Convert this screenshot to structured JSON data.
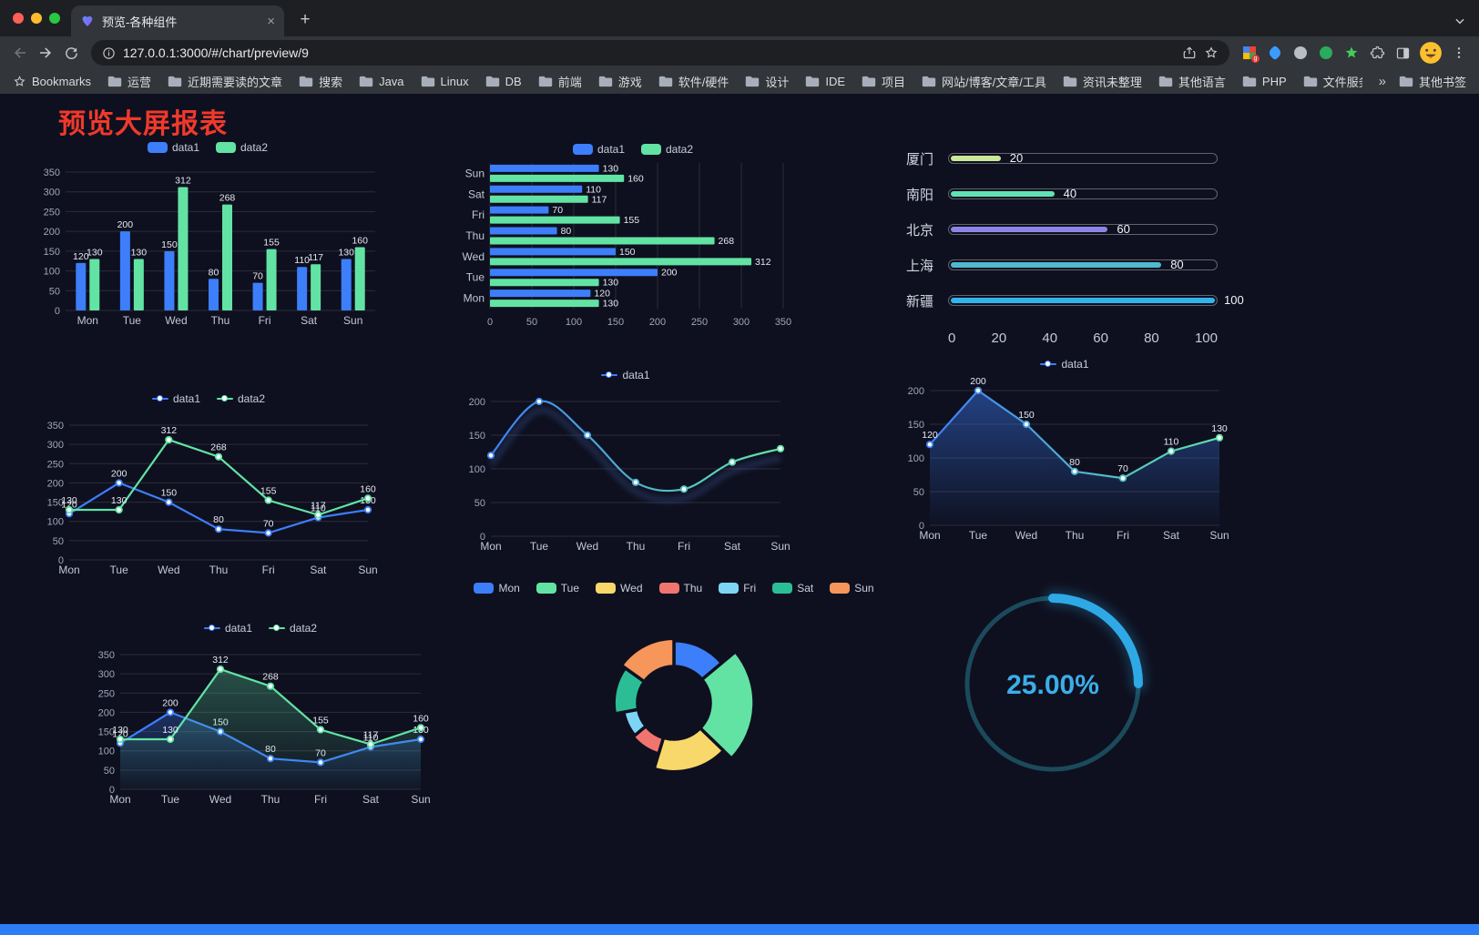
{
  "browser": {
    "tab": {
      "title": "预览-各种组件",
      "close_icon": "×"
    },
    "new_tab_icon": "+",
    "url": "127.0.0.1:3000/#/chart/preview/9",
    "bookmarks_bar": {
      "label": "Bookmarks",
      "folders": [
        "运营",
        "近期需要读的文章",
        "搜索",
        "Java",
        "Linux",
        "DB",
        "前端",
        "游戏",
        "软件/硬件",
        "设计",
        "IDE",
        "项目",
        "网站/博客/文章/工具",
        "资讯未整理",
        "其他语言",
        "PHP",
        "文件服务器"
      ],
      "overflow_chevron": "»",
      "other_bookmarks": "其他书签"
    }
  },
  "page": {
    "title": "预览大屏报表"
  },
  "colors": {
    "data1_blue": "#3D7EFA",
    "data2_green": "#62E3A4",
    "title_red": "#F0392B",
    "gauge_cyan": "#2EA9E6",
    "background": "#0E101F"
  },
  "chart_data": [
    {
      "type": "bar",
      "legend": [
        "data1",
        "data2"
      ],
      "legend_marker": "pill",
      "categories": [
        "Mon",
        "Tue",
        "Wed",
        "Thu",
        "Fri",
        "Sat",
        "Sun"
      ],
      "series": [
        {
          "name": "data1",
          "color": "#3D7EFA",
          "values": [
            120,
            200,
            150,
            80,
            70,
            110,
            130
          ]
        },
        {
          "name": "data2",
          "color": "#62E3A4",
          "values": [
            130,
            130,
            312,
            268,
            155,
            117,
            160
          ]
        }
      ],
      "ymax": 350,
      "ystep": 50
    },
    {
      "type": "hbar",
      "legend": [
        "data1",
        "data2"
      ],
      "legend_marker": "pill",
      "categories": [
        "Sun",
        "Sat",
        "Fri",
        "Thu",
        "Wed",
        "Tue",
        "Mon"
      ],
      "series": [
        {
          "name": "data1",
          "color": "#3D7EFA",
          "values": [
            130,
            110,
            70,
            80,
            150,
            200,
            120
          ]
        },
        {
          "name": "data2",
          "color": "#62E3A4",
          "values": [
            160,
            117,
            155,
            268,
            312,
            130,
            130
          ]
        }
      ],
      "xmax": 350,
      "xstep": 50
    },
    {
      "type": "progress",
      "max": 100,
      "xticks": [
        0,
        20,
        40,
        60,
        80,
        100
      ],
      "rows": [
        {
          "label": "厦门",
          "value": 20,
          "color": "#C9E999"
        },
        {
          "label": "南阳",
          "value": 40,
          "color": "#5FE3B3"
        },
        {
          "label": "北京",
          "value": 60,
          "color": "#8D85E6"
        },
        {
          "label": "上海",
          "value": 80,
          "color": "#4FB9CE"
        },
        {
          "label": "新疆",
          "value": 100,
          "color": "#33B3EC"
        }
      ]
    },
    {
      "type": "line",
      "legend": [
        "data1",
        "data2"
      ],
      "legend_marker": "line",
      "categories": [
        "Mon",
        "Tue",
        "Wed",
        "Thu",
        "Fri",
        "Sat",
        "Sun"
      ],
      "series": [
        {
          "name": "data1",
          "color": "#3D7EFA",
          "values": [
            120,
            200,
            150,
            80,
            70,
            110,
            130
          ],
          "labels": true
        },
        {
          "name": "data2",
          "color": "#62E3A4",
          "values": [
            130,
            130,
            312,
            268,
            155,
            117,
            160
          ],
          "labels": true
        }
      ],
      "ymax": 350,
      "ystep": 50,
      "smooth": false
    },
    {
      "type": "line",
      "legend": [
        "data1"
      ],
      "legend_marker": "line",
      "categories": [
        "Mon",
        "Tue",
        "Wed",
        "Thu",
        "Fri",
        "Sat",
        "Sun"
      ],
      "series": [
        {
          "name": "data1",
          "gradient": [
            "#3D7EFA",
            "#62E3A4"
          ],
          "values": [
            120,
            200,
            150,
            80,
            70,
            110,
            130
          ]
        }
      ],
      "ymax": 200,
      "ystep": 50,
      "smooth": true,
      "shadow": true
    },
    {
      "type": "line",
      "legend": [
        "data1"
      ],
      "legend_marker": "line",
      "categories": [
        "Mon",
        "Tue",
        "Wed",
        "Thu",
        "Fri",
        "Sat",
        "Sun"
      ],
      "series": [
        {
          "name": "data1",
          "gradient": [
            "#3D7EFA",
            "#62E3A4"
          ],
          "values": [
            120,
            200,
            150,
            80,
            70,
            110,
            130
          ],
          "labels": true,
          "area": [
            "rgba(61,126,250,0.45)",
            "rgba(61,126,250,0.02)"
          ]
        }
      ],
      "ymax": 200,
      "ystep": 50,
      "smooth": false
    },
    {
      "type": "line",
      "legend": [
        "data1",
        "data2"
      ],
      "legend_marker": "line",
      "categories": [
        "Mon",
        "Tue",
        "Wed",
        "Thu",
        "Fri",
        "Sat",
        "Sun"
      ],
      "series": [
        {
          "name": "data1",
          "color": "#3D7EFA",
          "values": [
            120,
            200,
            150,
            80,
            70,
            110,
            130
          ],
          "labels": true,
          "area": [
            "rgba(61,126,250,0.30)",
            "rgba(61,126,250,0.02)"
          ]
        },
        {
          "name": "data2",
          "color": "#62E3A4",
          "values": [
            130,
            130,
            312,
            268,
            155,
            117,
            160
          ],
          "labels": true,
          "area": [
            "rgba(98,227,164,0.30)",
            "rgba(98,227,164,0.02)"
          ]
        }
      ],
      "ymax": 350,
      "ystep": 50,
      "smooth": false
    },
    {
      "type": "pie",
      "rose": true,
      "inner_radius": 40,
      "legend": [
        "Mon",
        "Tue",
        "Wed",
        "Thu",
        "Fri",
        "Sat",
        "Sun"
      ],
      "legend_marker": "pill",
      "segments": [
        {
          "label": "Mon",
          "value": 120,
          "color": "#3D7EFA"
        },
        {
          "label": "Tue",
          "value": 200,
          "color": "#62E3A4"
        },
        {
          "label": "Wed",
          "value": 150,
          "color": "#F8D86A"
        },
        {
          "label": "Thu",
          "value": 80,
          "color": "#F0756E"
        },
        {
          "label": "Fri",
          "value": 70,
          "color": "#7CD5F5"
        },
        {
          "label": "Sat",
          "value": 110,
          "color": "#2BBE96"
        },
        {
          "label": "Sun",
          "value": 130,
          "color": "#F6965A"
        }
      ]
    },
    {
      "type": "gauge",
      "value": 25,
      "label": "25.00%",
      "color": "#2EA9E6",
      "track_color": "#1B4A5C"
    }
  ]
}
